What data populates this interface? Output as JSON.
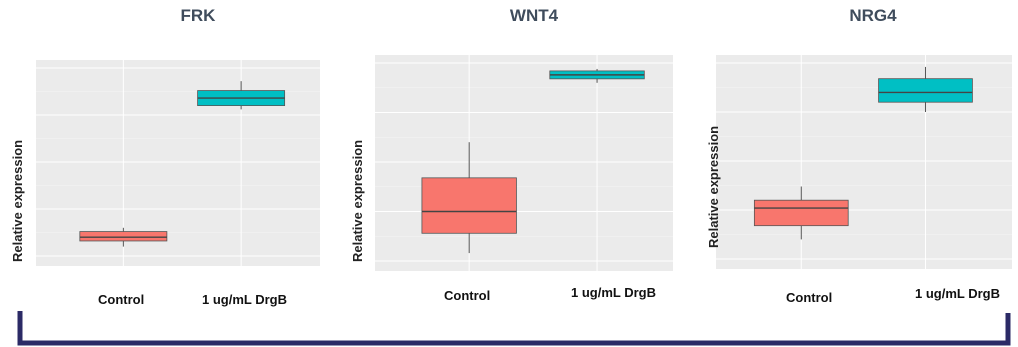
{
  "bracket_color": "#2b2a66",
  "fill_colors": {
    "Control": "#f8766d",
    "1 ug/mL DrgB": "#00bfc4"
  },
  "chart_data": [
    {
      "type": "box",
      "title": "FRK",
      "ylabel": "Relative expression",
      "categories": [
        "Control",
        "1 ug/mL DrgB"
      ],
      "ylim": [
        0,
        1
      ],
      "grid": true,
      "boxes": [
        {
          "category": "Control",
          "whisker_low": 0.05,
          "q1": 0.08,
          "median": 0.1,
          "q3": 0.13,
          "whisker_high": 0.15
        },
        {
          "category": "1 ug/mL DrgB",
          "whisker_low": 0.78,
          "q1": 0.8,
          "median": 0.84,
          "q3": 0.88,
          "whisker_high": 0.93
        }
      ]
    },
    {
      "type": "box",
      "title": "WNT4",
      "ylabel": "Relative expression",
      "categories": [
        "Control",
        "1 ug/mL DrgB"
      ],
      "ylim": [
        0,
        1
      ],
      "grid": true,
      "boxes": [
        {
          "category": "Control",
          "whisker_low": 0.04,
          "q1": 0.14,
          "median": 0.25,
          "q3": 0.42,
          "whisker_high": 0.6
        },
        {
          "category": "1 ug/mL DrgB",
          "whisker_low": 0.9,
          "q1": 0.92,
          "median": 0.94,
          "q3": 0.96,
          "whisker_high": 0.97
        }
      ]
    },
    {
      "type": "box",
      "title": "NRG4",
      "ylabel": "Relative expression",
      "categories": [
        "Control",
        "1 ug/mL DrgB"
      ],
      "ylim": [
        0,
        1
      ],
      "grid": true,
      "boxes": [
        {
          "category": "Control",
          "whisker_low": 0.1,
          "q1": 0.17,
          "median": 0.26,
          "q3": 0.3,
          "whisker_high": 0.37
        },
        {
          "category": "1 ug/mL DrgB",
          "whisker_low": 0.75,
          "q1": 0.8,
          "median": 0.85,
          "q3": 0.92,
          "whisker_high": 0.98
        }
      ]
    }
  ]
}
